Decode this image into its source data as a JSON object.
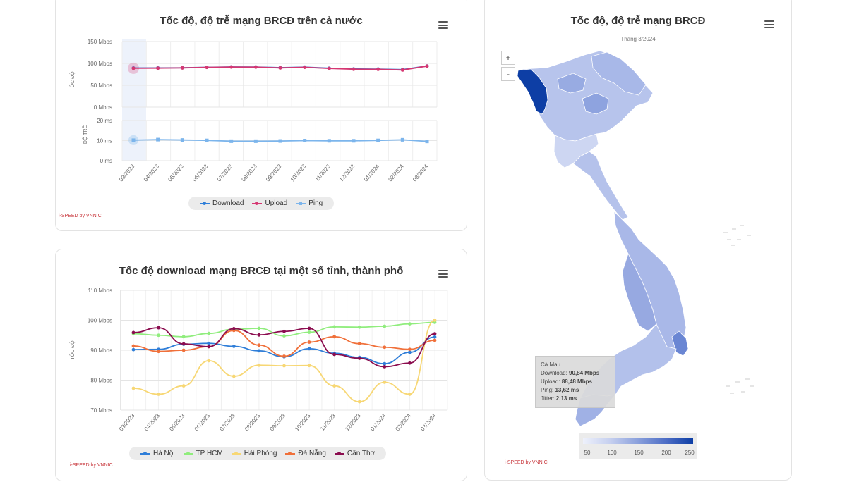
{
  "national": {
    "title": "Tốc độ, độ trễ mạng BRCĐ trên cả nước",
    "credit": "i-SPEED by VNNIC",
    "speed_axis_label": "TỐC ĐỘ",
    "latency_axis_label": "ĐỘ TRỄ",
    "speed_ticks": [
      "150 Mbps",
      "100 Mbps",
      "50 Mbps",
      "0 Mbps"
    ],
    "latency_ticks": [
      "20 ms",
      "10 ms",
      "0 ms"
    ],
    "legend": [
      "Download",
      "Upload",
      "Ping"
    ]
  },
  "provinces": {
    "title": "Tốc độ download mạng BRCĐ tại một số tỉnh, thành phố",
    "credit": "i-SPEED by VNNIC",
    "y_axis_label": "TỐC ĐỘ",
    "y_ticks": [
      "110 Mbps",
      "100 Mbps",
      "90 Mbps",
      "80 Mbps",
      "70 Mbps"
    ],
    "legend": [
      "Hà Nội",
      "TP HCM",
      "Hải Phòng",
      "Đà Nẵng",
      "Cần Thơ"
    ]
  },
  "map": {
    "title": "Tốc độ, độ trễ mạng BRCĐ",
    "subtitle": "Tháng 3/2024",
    "credit": "i-SPEED by VNNIC",
    "zoom_in": "+",
    "zoom_out": "-",
    "tooltip": {
      "name": "Cà Mau",
      "download_label": "Download:",
      "download_value": "90,84 Mbps",
      "upload_label": "Upload:",
      "upload_value": "88,48 Mbps",
      "ping_label": "Ping:",
      "ping_value": "13,62 ms",
      "jitter_label": "Jitter:",
      "jitter_value": "2,13 ms"
    },
    "colorbar_ticks": [
      "50",
      "100",
      "150",
      "200",
      "250"
    ],
    "colors": {
      "low": "#eef1fb",
      "high": "#0d3ea5"
    }
  },
  "chart_data": [
    {
      "type": "line",
      "title": "Tốc độ, độ trễ mạng BRCĐ trên cả nước",
      "x": [
        "03/2023",
        "04/2023",
        "05/2023",
        "06/2023",
        "07/2023",
        "08/2023",
        "09/2023",
        "10/2023",
        "11/2023",
        "12/2023",
        "01/2024",
        "02/2024",
        "03/2024"
      ],
      "ylabel": "TỐC ĐỘ",
      "ylim": [
        0,
        150
      ],
      "series": [
        {
          "name": "Download",
          "color": "#2f7ed8",
          "values": [
            89.5,
            89.6,
            90,
            91.2,
            92,
            91.8,
            90.3,
            91.5,
            89,
            87.2,
            87,
            85.8,
            94
          ]
        },
        {
          "name": "Upload",
          "color": "#d63772",
          "values": [
            89,
            89.2,
            89.8,
            91,
            91.7,
            91.5,
            89.8,
            91.2,
            88.5,
            86.7,
            86.5,
            85,
            93.8
          ]
        }
      ],
      "secondary": {
        "ylabel": "ĐỘ TRỄ",
        "ylim": [
          0,
          20
        ],
        "series": [
          {
            "name": "Ping",
            "color": "#7cb5ec",
            "values": [
              10.2,
              10.5,
              10.3,
              10.1,
              9.7,
              9.7,
              9.8,
              10,
              9.9,
              9.9,
              10.1,
              10.4,
              9.6
            ]
          }
        ]
      },
      "grid": true,
      "legend": "bottom"
    },
    {
      "type": "line",
      "title": "Tốc độ download mạng BRCĐ tại một số tỉnh, thành phố",
      "x": [
        "03/2023",
        "04/2023",
        "05/2023",
        "06/2023",
        "07/2023",
        "08/2023",
        "09/2023",
        "10/2023",
        "11/2023",
        "12/2023",
        "01/2024",
        "02/2024",
        "03/2024"
      ],
      "ylabel": "TỐC ĐỘ",
      "ylim": [
        70,
        110
      ],
      "series": [
        {
          "name": "Hà Nội",
          "color": "#2f7ed8",
          "values": [
            90.2,
            90.3,
            92,
            92.3,
            91.3,
            89.8,
            87.8,
            90.5,
            89,
            87.6,
            85.5,
            89.3,
            94.4
          ]
        },
        {
          "name": "TP HCM",
          "color": "#90ed7d",
          "values": [
            95.5,
            95,
            94.5,
            95.6,
            97,
            97.3,
            94.8,
            96,
            97.8,
            97.7,
            98,
            98.8,
            99.3
          ]
        },
        {
          "name": "Hải Phòng",
          "color": "#f7d774",
          "values": [
            77.3,
            75.3,
            78.1,
            86.5,
            81.3,
            85,
            84.8,
            84.9,
            78.1,
            72.8,
            79.3,
            75.3,
            100
          ]
        },
        {
          "name": "Đà Nẵng",
          "color": "#f0703a",
          "values": [
            91.4,
            89.6,
            90,
            91.2,
            96.6,
            91.7,
            88,
            92.7,
            94.5,
            92.2,
            91,
            90.3,
            93.3
          ]
        },
        {
          "name": "Cần Thơ",
          "color": "#8b0d4f",
          "values": [
            95.9,
            97.5,
            92.1,
            91.2,
            97.2,
            95.1,
            96.3,
            97.3,
            88.6,
            87.3,
            84.5,
            85.7,
            95.5
          ]
        }
      ],
      "grid": true,
      "legend": "bottom"
    },
    {
      "type": "heatmap",
      "title": "Tốc độ, độ trễ mạng BRCĐ",
      "subtitle": "Tháng 3/2024",
      "colorbar": [
        50,
        100,
        150,
        200,
        250
      ],
      "highlighted_region": "Cà Mau",
      "highlighted_values": {
        "Download": "90,84 Mbps",
        "Upload": "88,48 Mbps",
        "Ping": "13,62 ms",
        "Jitter": "2,13 ms"
      }
    }
  ]
}
